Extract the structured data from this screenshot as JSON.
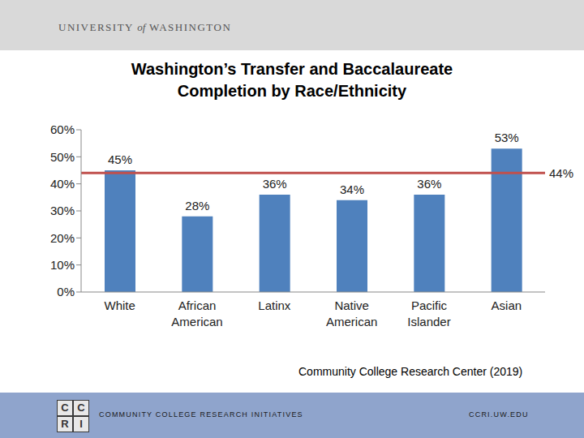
{
  "header": [
    "UNIVERSITY",
    "of",
    "WASHINGTON"
  ],
  "chart_data": {
    "type": "bar",
    "title": "Washington’s Transfer and Baccalaureate Completion by Race/Ethnicity",
    "categories": [
      "White",
      "African American",
      "Latinx",
      "Native American",
      "Pacific Islander",
      "Asian"
    ],
    "values": [
      45,
      28,
      36,
      34,
      36,
      53
    ],
    "value_labels": [
      "45%",
      "28%",
      "36%",
      "34%",
      "36%",
      "53%"
    ],
    "data_labels": true,
    "color": "#4f81bd",
    "ylim": [
      0,
      60
    ],
    "yticks": [
      {
        "value": 0,
        "label": "0%"
      },
      {
        "value": 10,
        "label": "10%"
      },
      {
        "value": 20,
        "label": "20%"
      },
      {
        "value": 30,
        "label": "30%"
      },
      {
        "value": 40,
        "label": "40%"
      },
      {
        "value": 50,
        "label": "50%"
      },
      {
        "value": 60,
        "label": "60%"
      }
    ],
    "grid": false,
    "reference_line": {
      "value": 44,
      "label": "44%",
      "color": "#c0504d"
    }
  },
  "source": "Community College Research Center (2019)",
  "footer": {
    "logo": [
      "C",
      "C",
      "R",
      "I"
    ],
    "name": "COMMUNITY COLLEGE RESEARCH INITIATIVES",
    "url": "CCRI.UW.EDU"
  }
}
